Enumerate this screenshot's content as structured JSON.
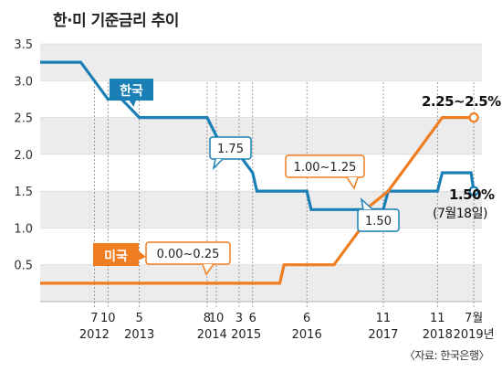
{
  "title": "한·미 기준금리 추이",
  "source": "〈자료: 한국은행〉",
  "chart_data": {
    "type": "line",
    "ylim": [
      0,
      3.5
    ],
    "yticks": [
      "3.5",
      "3.0",
      "2.5",
      "2.0",
      "1.5",
      "1.0",
      "0.5"
    ],
    "grid": true,
    "xlim": [
      2011.5,
      2019.65
    ],
    "x_ticks": [
      {
        "x": 2012.5,
        "label": "7"
      },
      {
        "x": 2012.75,
        "label": "10"
      },
      {
        "x": 2013.33,
        "label": "5"
      },
      {
        "x": 2014.58,
        "label": "8"
      },
      {
        "x": 2014.75,
        "label": "10"
      },
      {
        "x": 2015.17,
        "label": "3"
      },
      {
        "x": 2015.42,
        "label": "6"
      },
      {
        "x": 2016.42,
        "label": "6"
      },
      {
        "x": 2017.83,
        "label": "11"
      },
      {
        "x": 2018.83,
        "label": "11"
      },
      {
        "x": 2019.5,
        "label": "7월"
      }
    ],
    "year_labels": [
      {
        "x": 2012.5,
        "label": "2012"
      },
      {
        "x": 2013.33,
        "label": "2013"
      },
      {
        "x": 2014.67,
        "label": "2014"
      },
      {
        "x": 2015.3,
        "label": "2015"
      },
      {
        "x": 2016.42,
        "label": "2016"
      },
      {
        "x": 2017.83,
        "label": "2017"
      },
      {
        "x": 2018.83,
        "label": "2018"
      },
      {
        "x": 2019.5,
        "label": "2019년"
      }
    ],
    "series": [
      {
        "name": "한국",
        "color": "#1a7fb5",
        "points": [
          [
            2011.5,
            3.25
          ],
          [
            2012.25,
            3.25
          ],
          [
            2012.5,
            3.0
          ],
          [
            2012.75,
            2.75
          ],
          [
            2013.0,
            2.75
          ],
          [
            2013.33,
            2.5
          ],
          [
            2014.58,
            2.5
          ],
          [
            2014.75,
            2.25
          ],
          [
            2015.0,
            2.0
          ],
          [
            2015.17,
            2.0
          ],
          [
            2015.42,
            1.75
          ],
          [
            2015.5,
            1.5
          ],
          [
            2016.42,
            1.5
          ],
          [
            2016.5,
            1.25
          ],
          [
            2017.83,
            1.25
          ],
          [
            2017.92,
            1.5
          ],
          [
            2018.83,
            1.5
          ],
          [
            2018.92,
            1.75
          ],
          [
            2019.45,
            1.75
          ],
          [
            2019.5,
            1.5
          ]
        ]
      },
      {
        "name": "미국",
        "color": "#ef7d22",
        "points": [
          [
            2011.5,
            0.25
          ],
          [
            2015.92,
            0.25
          ],
          [
            2016.0,
            0.5
          ],
          [
            2016.92,
            0.5
          ],
          [
            2017.17,
            0.75
          ],
          [
            2017.42,
            1.0
          ],
          [
            2017.5,
            1.25
          ],
          [
            2017.92,
            1.5
          ],
          [
            2018.17,
            1.75
          ],
          [
            2018.42,
            2.0
          ],
          [
            2018.67,
            2.25
          ],
          [
            2018.92,
            2.5
          ],
          [
            2019.5,
            2.5
          ]
        ]
      }
    ],
    "annotations": {
      "kr_series_label": "한국",
      "us_series_label": "미국",
      "kr_175": "1.75",
      "kr_150_box": "1.50",
      "us_range_1": "1.00~1.25",
      "us_range_0": "0.00~0.25",
      "us_end": "2.25~2.5%",
      "kr_end": "1.50%",
      "kr_end_date": "(7월18일)"
    }
  }
}
